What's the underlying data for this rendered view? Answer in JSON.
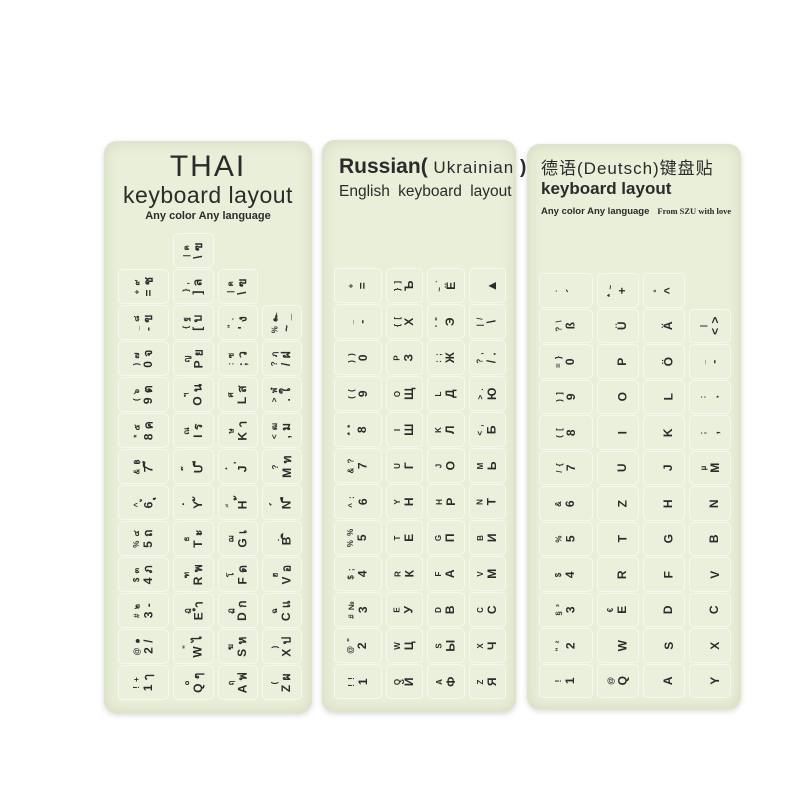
{
  "image_type": "product-photo-of-keyboard-layout-stickers",
  "colors": {
    "page_bg": "#ffffff",
    "card_bg": "#e9efd8",
    "ink": "#2b2b2b"
  },
  "stickers": [
    {
      "id": "thai",
      "header": {
        "line1": "THAI",
        "line2": "keyboard layout",
        "line3": "Any color Any language"
      },
      "columns": [
        [
          {
            "s": "! +",
            "m": "1 ๅ"
          },
          {
            "s": "@ ๑",
            "m": "2 /"
          },
          {
            "s": "# ๒",
            "m": "3 -"
          },
          {
            "s": "$ ๓",
            "m": "4 ภ"
          },
          {
            "s": "% ๔",
            "m": "5 ถ"
          },
          {
            "s": "^ ู",
            "m": "6 ุ"
          },
          {
            "s": "& ฿",
            "m": "7 ึ"
          },
          {
            "s": "* ๕",
            "m": "8 ค"
          },
          {
            "s": "( ๖",
            "m": "9 ต"
          },
          {
            "s": ") ๗",
            "m": "0 จ"
          },
          {
            "s": "_ ๘",
            "m": "- ข"
          },
          {
            "s": "+ ๙",
            "m": "= ช"
          }
        ],
        [
          {
            "s": "๐",
            "m": "Q ๆ"
          },
          {
            "s": "\"",
            "m": "W ไ"
          },
          {
            "s": "ฎ",
            "m": "E ำ"
          },
          {
            "s": "ฑ",
            "m": "R พ"
          },
          {
            "s": "ธ",
            "m": "T ะ"
          },
          {
            "s": "ํ",
            "m": "Y ั"
          },
          {
            "s": "๊",
            "m": "U ี"
          },
          {
            "s": "ณ",
            "m": "I ร"
          },
          {
            "s": "ฯ",
            "m": "O น"
          },
          {
            "s": "ญ",
            "m": "P ย"
          },
          {
            "s": "{ ฐ",
            "m": "[ บ"
          },
          {
            "s": "} ,",
            "m": "] ล"
          },
          {
            "s": "| ฅ",
            "m": "\\ ฃ"
          }
        ],
        [
          {
            "s": "ฤ",
            "m": "A ฟ"
          },
          {
            "s": "ฆ",
            "m": "S ห"
          },
          {
            "s": "ฏ",
            "m": "D ก"
          },
          {
            "s": "โ",
            "m": "F ด"
          },
          {
            "s": "ฌ",
            "m": "G เ"
          },
          {
            "s": "็",
            "m": "H ้"
          },
          {
            "s": "๋",
            "m": "J ่"
          },
          {
            "s": "ษ",
            "m": "K า"
          },
          {
            "s": "ศ",
            "m": "L ส"
          },
          {
            "s": ": ซ",
            "m": "; ว"
          },
          {
            "s": "\" .",
            "m": "' ง"
          },
          {
            "s": "| ฅ",
            "m": "\\ ฃ"
          }
        ],
        [
          {
            "s": "(",
            "m": "Z ผ"
          },
          {
            "s": ")",
            "m": "X ป"
          },
          {
            "s": "ฉ",
            "m": "C แ"
          },
          {
            "s": "ฮ",
            "m": "V อ"
          },
          {
            "s": "ฺ",
            "m": "B ิ"
          },
          {
            "s": "์",
            "m": "N ื"
          },
          {
            "s": "?",
            "m": "M ท"
          },
          {
            "s": "< ฒ",
            "m": ", ม"
          },
          {
            "s": "> ฬ",
            "m": ". ใ"
          },
          {
            "s": "? ฦ",
            "m": "/ ฝ"
          },
          {
            "s": "% ๛",
            "m": "~ _"
          }
        ]
      ]
    },
    {
      "id": "russian",
      "header": {
        "title_bold": "Russian(",
        "title_inner": " Ukrainian ",
        "title_close": ")",
        "line2": "English keyboard layout"
      },
      "columns": [
        [
          {
            "s": "! !",
            "m": "1"
          },
          {
            "s": "@ \"",
            "m": "2"
          },
          {
            "s": "# №",
            "m": "3"
          },
          {
            "s": "$ ;",
            "m": "4"
          },
          {
            "s": "% %",
            "m": "5"
          },
          {
            "s": "^ :",
            "m": "6"
          },
          {
            "s": "& ?",
            "m": "7"
          },
          {
            "s": "* *",
            "m": "8"
          },
          {
            "s": "( (",
            "m": "9"
          },
          {
            "s": ") )",
            "m": "0"
          },
          {
            "s": "_",
            "m": "-"
          },
          {
            "s": "+",
            "m": "="
          }
        ],
        [
          {
            "s": "Q",
            "m": "Й"
          },
          {
            "s": "W",
            "m": "Ц"
          },
          {
            "s": "E",
            "m": "У"
          },
          {
            "s": "R",
            "m": "К"
          },
          {
            "s": "T",
            "m": "Е"
          },
          {
            "s": "Y",
            "m": "Н"
          },
          {
            "s": "U",
            "m": "Г"
          },
          {
            "s": "I",
            "m": "Ш"
          },
          {
            "s": "O",
            "m": "Щ"
          },
          {
            "s": "P",
            "m": "З"
          },
          {
            "s": "{ [",
            "m": "Х"
          },
          {
            "s": "} ]",
            "m": "Ъ"
          }
        ],
        [
          {
            "s": "A",
            "m": "Ф"
          },
          {
            "s": "S",
            "m": "Ы"
          },
          {
            "s": "D",
            "m": "В"
          },
          {
            "s": "F",
            "m": "А"
          },
          {
            "s": "G",
            "m": "П"
          },
          {
            "s": "H",
            "m": "Р"
          },
          {
            "s": "J",
            "m": "О"
          },
          {
            "s": "K",
            "m": "Л"
          },
          {
            "s": "L",
            "m": "Д"
          },
          {
            "s": ": ;",
            "m": "Ж"
          },
          {
            "s": "' \"",
            "m": "Э"
          },
          {
            "s": "~ `",
            "m": "Ё"
          }
        ],
        [
          {
            "s": "Z",
            "m": "Я"
          },
          {
            "s": "X",
            "m": "Ч"
          },
          {
            "s": "C",
            "m": "С"
          },
          {
            "s": "V",
            "m": "М"
          },
          {
            "s": "B",
            "m": "И"
          },
          {
            "s": "N",
            "m": "Т"
          },
          {
            "s": "M",
            "m": "Ь"
          },
          {
            "s": "< ,",
            "m": "Б"
          },
          {
            "s": "> .",
            "m": "Ю"
          },
          {
            "s": "? ,",
            "m": "/ ."
          },
          {
            "s": "| /",
            "m": "\\"
          },
          {
            "icon": "backspace-arrow",
            "s": "",
            "m": "▲"
          }
        ]
      ]
    },
    {
      "id": "german",
      "header": {
        "line1": "德语(Deutsch)键盘贴",
        "line2": "keyboard layout",
        "line3a": "Any color Any language",
        "line3b": "From SZU with love"
      },
      "columns": [
        [
          {
            "s": "!",
            "m": "1"
          },
          {
            "s": "\" ²",
            "m": "2"
          },
          {
            "s": "§ ³",
            "m": "3"
          },
          {
            "s": "$",
            "m": "4"
          },
          {
            "s": "%",
            "m": "5"
          },
          {
            "s": "&",
            "m": "6"
          },
          {
            "s": "/ {",
            "m": "7"
          },
          {
            "s": "( [",
            "m": "8"
          },
          {
            "s": ") ]",
            "m": "9"
          },
          {
            "s": "= }",
            "m": "0"
          },
          {
            "s": "? \\",
            "m": "ß"
          },
          {
            "s": "`",
            "m": "´"
          }
        ],
        [
          {
            "s": "@",
            "m": "Q"
          },
          {
            "s": "",
            "m": "W"
          },
          {
            "s": "€",
            "m": "E"
          },
          {
            "s": "",
            "m": "R"
          },
          {
            "s": "",
            "m": "T"
          },
          {
            "s": "",
            "m": "Z"
          },
          {
            "s": "",
            "m": "U"
          },
          {
            "s": "",
            "m": "I"
          },
          {
            "s": "",
            "m": "O"
          },
          {
            "s": "",
            "m": "P"
          },
          {
            "s": "",
            "m": "Ü"
          },
          {
            "s": "* ~",
            "m": "+"
          }
        ],
        [
          {
            "s": "",
            "m": "A"
          },
          {
            "s": "",
            "m": "S"
          },
          {
            "s": "",
            "m": "D"
          },
          {
            "s": "",
            "m": "F"
          },
          {
            "s": "",
            "m": "G"
          },
          {
            "s": "",
            "m": "H"
          },
          {
            "s": "",
            "m": "J"
          },
          {
            "s": "",
            "m": "K"
          },
          {
            "s": "",
            "m": "L"
          },
          {
            "s": "",
            "m": "Ö"
          },
          {
            "s": "",
            "m": "Ä"
          },
          {
            "s": "°",
            "m": "^"
          }
        ],
        [
          {
            "s": "",
            "m": "Y"
          },
          {
            "s": "",
            "m": "X"
          },
          {
            "s": "",
            "m": "C"
          },
          {
            "s": "",
            "m": "V"
          },
          {
            "s": "",
            "m": "B"
          },
          {
            "s": "",
            "m": "N"
          },
          {
            "s": "µ",
            "m": "M"
          },
          {
            "s": ";",
            "m": ","
          },
          {
            "s": ":",
            "m": "."
          },
          {
            "s": "_",
            "m": "-"
          },
          {
            "s": "|",
            "m": "< >"
          }
        ]
      ]
    }
  ]
}
